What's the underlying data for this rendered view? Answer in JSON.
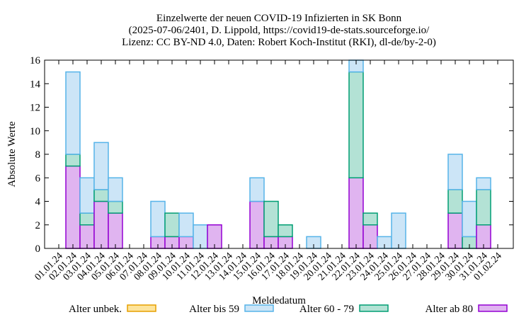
{
  "chart_data": {
    "type": "bar",
    "stacked": true,
    "title": [
      "Einzelwerte der neuen COVID-19 Infizierten in SK Bonn",
      "(2025-07-06/2401, D. Lippold, https://covid19-de-stats.sourceforge.io/",
      "Lizenz: CC BY-ND 4.0, Daten: Robert Koch-Institut (RKI), dl-de/by-2-0)"
    ],
    "xlabel": "Meldedatum",
    "ylabel": "Absolute Werte",
    "ylim": [
      0,
      16
    ],
    "yticks": [
      0,
      2,
      4,
      6,
      8,
      10,
      12,
      14,
      16
    ],
    "categories": [
      "01.01.24",
      "02.01.24",
      "03.01.24",
      "04.01.24",
      "05.01.24",
      "06.01.24",
      "07.01.24",
      "08.01.24",
      "09.01.24",
      "10.01.24",
      "11.01.24",
      "12.01.24",
      "13.01.24",
      "14.01.24",
      "15.01.24",
      "16.01.24",
      "17.01.24",
      "18.01.24",
      "19.01.24",
      "20.01.24",
      "21.01.24",
      "22.01.24",
      "23.01.24",
      "24.01.24",
      "25.01.24",
      "26.01.24",
      "27.01.24",
      "28.01.24",
      "29.01.24",
      "30.01.24",
      "31.01.24",
      "01.02.24"
    ],
    "series": [
      {
        "name": "Alter ab 80",
        "fill": "#e0b4f0",
        "stroke": "#9400d3",
        "values": [
          0,
          7,
          2,
          4,
          3,
          0,
          0,
          1,
          1,
          1,
          0,
          2,
          0,
          0,
          4,
          1,
          1,
          0,
          0,
          0,
          0,
          6,
          2,
          0,
          0,
          0,
          0,
          0,
          3,
          0,
          2,
          0
        ]
      },
      {
        "name": "Alter 60 - 79",
        "fill": "#b3e2d5",
        "stroke": "#009e73",
        "values": [
          0,
          1,
          1,
          1,
          1,
          0,
          0,
          0,
          2,
          0,
          0,
          0,
          0,
          0,
          0,
          3,
          1,
          0,
          0,
          0,
          0,
          9,
          1,
          0,
          0,
          0,
          0,
          0,
          2,
          1,
          3,
          0
        ]
      },
      {
        "name": "Alter bis 59",
        "fill": "#cce5f7",
        "stroke": "#56b4e9",
        "values": [
          0,
          7,
          3,
          4,
          2,
          0,
          0,
          3,
          0,
          2,
          2,
          0,
          0,
          0,
          2,
          0,
          0,
          0,
          1,
          0,
          0,
          1,
          0,
          1,
          3,
          0,
          0,
          0,
          3,
          3,
          1,
          0
        ]
      },
      {
        "name": "Alter unbek.",
        "fill": "#fde49b",
        "stroke": "#e69f00",
        "values": [
          0,
          0,
          0,
          0,
          0,
          0,
          0,
          0,
          0,
          0,
          0,
          0,
          0,
          0,
          0,
          0,
          0,
          0,
          0,
          0,
          0,
          0,
          0,
          0,
          0,
          0,
          0,
          0,
          0,
          0,
          0,
          0
        ]
      }
    ],
    "legend": [
      "Alter unbek.",
      "Alter bis 59",
      "Alter 60 - 79",
      "Alter ab 80"
    ],
    "legend_placement": "bottom"
  }
}
